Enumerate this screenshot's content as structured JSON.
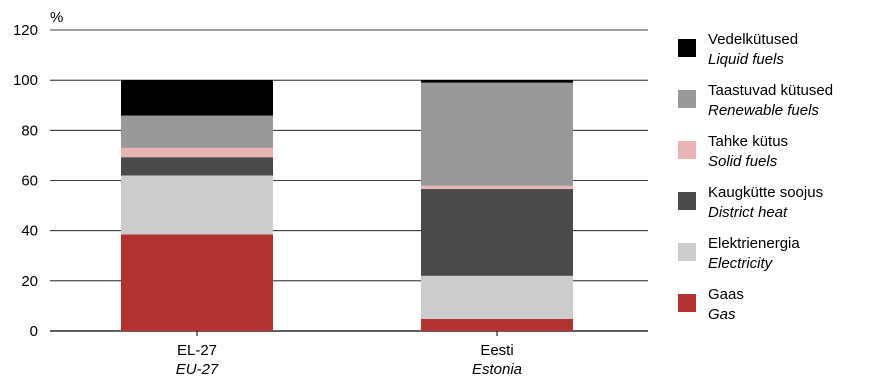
{
  "chart_data": {
    "type": "bar",
    "stacked": true,
    "unit_label": "%",
    "ylim": [
      0,
      120
    ],
    "yticks": [
      "0",
      "20",
      "40",
      "60",
      "80",
      "100",
      "120"
    ],
    "grid": true,
    "legend_position": "right",
    "categories": [
      {
        "et": "EL-27",
        "en": "EU-27"
      },
      {
        "et": "Eesti",
        "en": "Estonia"
      }
    ],
    "series": [
      {
        "et": "Gaas",
        "en": "Gas",
        "color": "#b33333",
        "values": [
          38.5,
          4.8
        ]
      },
      {
        "et": "Elektrienergia",
        "en": "Electricity",
        "color": "#cccccc",
        "values": [
          23.5,
          17.2
        ]
      },
      {
        "et": "Kaugkütte soojus",
        "en": "District heat",
        "color": "#4a4a4a",
        "values": [
          7.3,
          34.6
        ]
      },
      {
        "et": "Tahke kütus",
        "en": "Solid fuels",
        "color": "#e8b4b4",
        "values": [
          3.7,
          1.3
        ]
      },
      {
        "et": "Taastuvad kütused",
        "en": "Renewable fuels",
        "color": "#999999",
        "values": [
          12.9,
          41.1
        ]
      },
      {
        "et": "Vedelkütused",
        "en": "Liquid fuels",
        "color": "#000000",
        "values": [
          14.1,
          1.0
        ]
      }
    ]
  }
}
